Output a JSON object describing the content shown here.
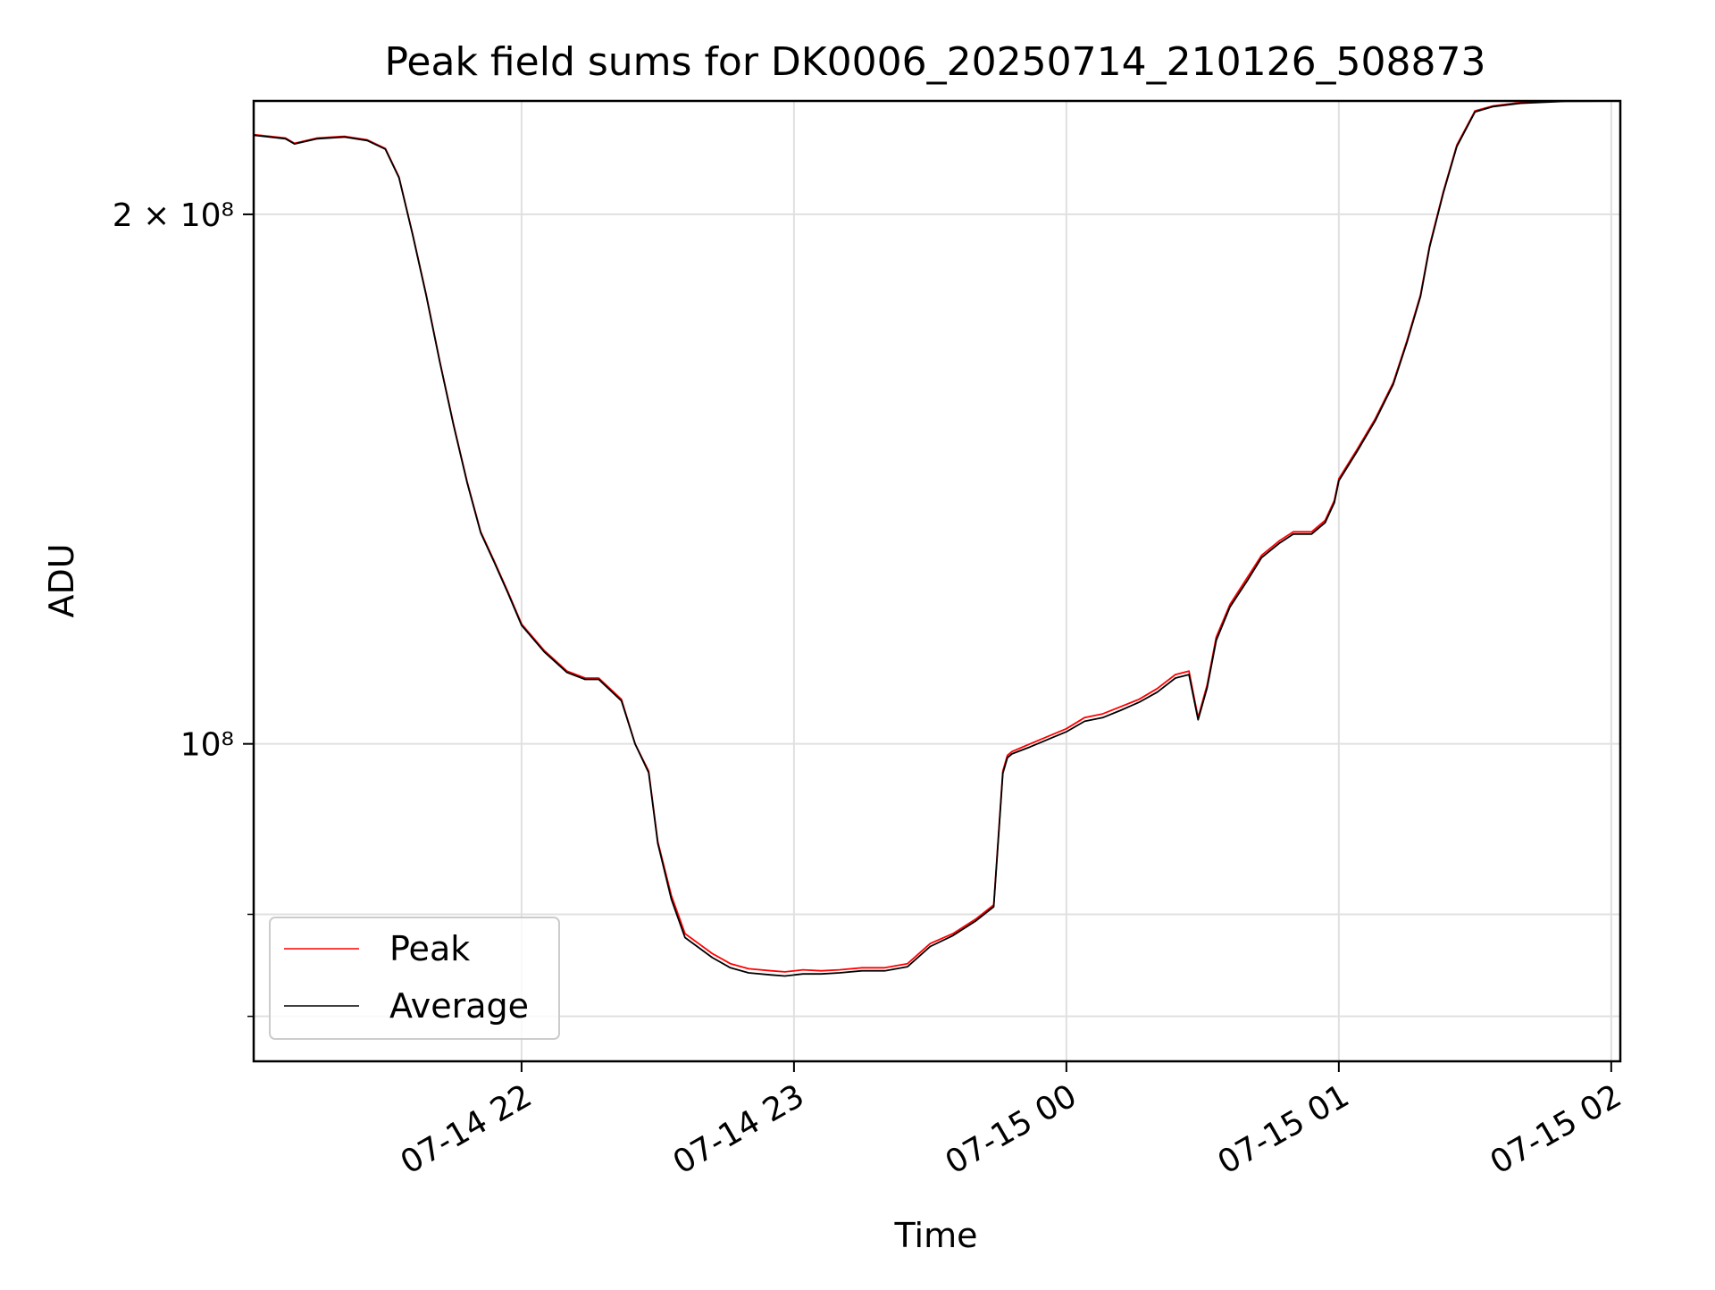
{
  "chart_data": {
    "type": "line",
    "title": "Peak field sums for DK0006_20250714_210126_508873",
    "xlabel": "Time",
    "ylabel": "ADU",
    "yscale": "log",
    "grid": true,
    "legend_position": "lower-left",
    "x_ticks": [
      "07-14 22",
      "07-14 23",
      "07-15 00",
      "07-15 01",
      "07-15 02"
    ],
    "y_ticks": [
      {
        "value": 200000000,
        "label": "2 × 10⁸"
      },
      {
        "value": 100000000,
        "label": "10⁸"
      }
    ],
    "y_minor_gridlines": [
      80000000,
      70000000
    ],
    "xlim": [
      "2025-07-14 21:01",
      "2025-07-15 02:02"
    ],
    "ylim": [
      66000000,
      232000000
    ],
    "series": [
      {
        "name": "Peak",
        "color": "#ff0000",
        "x": [
          "2025-07-14 21:01",
          "2025-07-14 21:08",
          "2025-07-14 21:10",
          "2025-07-14 21:15",
          "2025-07-14 21:21",
          "2025-07-14 21:26",
          "2025-07-14 21:30",
          "2025-07-14 21:33",
          "2025-07-14 21:36",
          "2025-07-14 21:39",
          "2025-07-14 21:42",
          "2025-07-14 21:45",
          "2025-07-14 21:48",
          "2025-07-14 21:51",
          "2025-07-14 21:54",
          "2025-07-14 21:57",
          "2025-07-14 22:00",
          "2025-07-14 22:05",
          "2025-07-14 22:10",
          "2025-07-14 22:14",
          "2025-07-14 22:17",
          "2025-07-14 22:22",
          "2025-07-14 22:25",
          "2025-07-14 22:28",
          "2025-07-14 22:30",
          "2025-07-14 22:33",
          "2025-07-14 22:36",
          "2025-07-14 22:39",
          "2025-07-14 22:42",
          "2025-07-14 22:46",
          "2025-07-14 22:50",
          "2025-07-14 22:55",
          "2025-07-14 22:58",
          "2025-07-14 23:02",
          "2025-07-14 23:06",
          "2025-07-14 23:10",
          "2025-07-14 23:15",
          "2025-07-14 23:20",
          "2025-07-14 23:25",
          "2025-07-14 23:30",
          "2025-07-14 23:35",
          "2025-07-14 23:40",
          "2025-07-14 23:44",
          "2025-07-14 23:46",
          "2025-07-14 23:47",
          "2025-07-14 23:48",
          "2025-07-14 23:52",
          "2025-07-14 23:56",
          "2025-07-15 00:00",
          "2025-07-15 00:04",
          "2025-07-15 00:08",
          "2025-07-15 00:12",
          "2025-07-15 00:16",
          "2025-07-15 00:20",
          "2025-07-15 00:24",
          "2025-07-15 00:27",
          "2025-07-15 00:29",
          "2025-07-15 00:31",
          "2025-07-15 00:33",
          "2025-07-15 00:36",
          "2025-07-15 00:40",
          "2025-07-15 00:43",
          "2025-07-15 00:47",
          "2025-07-15 00:50",
          "2025-07-15 00:54",
          "2025-07-15 00:57",
          "2025-07-15 00:59",
          "2025-07-15 01:00",
          "2025-07-15 01:04",
          "2025-07-15 01:08",
          "2025-07-15 01:12",
          "2025-07-15 01:15",
          "2025-07-15 01:18",
          "2025-07-15 01:20",
          "2025-07-15 01:23",
          "2025-07-15 01:26",
          "2025-07-15 01:30",
          "2025-07-15 01:34",
          "2025-07-15 01:40",
          "2025-07-15 01:50",
          "2025-07-15 02:02"
        ],
        "y": [
          222000000,
          221000000,
          219500000,
          221000000,
          221500000,
          220500000,
          218000000,
          210000000,
          195000000,
          180000000,
          165000000,
          152000000,
          141000000,
          132000000,
          127000000,
          122000000,
          117000000,
          113000000,
          110000000,
          109000000,
          109000000,
          106000000,
          100000000,
          96500000,
          88000000,
          82000000,
          78000000,
          77000000,
          76000000,
          75000000,
          74500000,
          74300000,
          74200000,
          74400000,
          74300000,
          74400000,
          74600000,
          74600000,
          75000000,
          77000000,
          78000000,
          79500000,
          81000000,
          96500000,
          98500000,
          99000000,
          100000000,
          101000000,
          102000000,
          103500000,
          104000000,
          105000000,
          106000000,
          107500000,
          109500000,
          110000000,
          103500000,
          108000000,
          115000000,
          120000000,
          124500000,
          128000000,
          130500000,
          132000000,
          132000000,
          134000000,
          137500000,
          141500000,
          147000000,
          153000000,
          160500000,
          169500000,
          180000000,
          192000000,
          206000000,
          219000000,
          229000000,
          230500000,
          231500000,
          232000000,
          232000000
        ]
      },
      {
        "name": "Average",
        "color": "#000000",
        "x": [
          "2025-07-14 21:01",
          "2025-07-14 21:08",
          "2025-07-14 21:10",
          "2025-07-14 21:15",
          "2025-07-14 21:21",
          "2025-07-14 21:26",
          "2025-07-14 21:30",
          "2025-07-14 21:33",
          "2025-07-14 21:36",
          "2025-07-14 21:39",
          "2025-07-14 21:42",
          "2025-07-14 21:45",
          "2025-07-14 21:48",
          "2025-07-14 21:51",
          "2025-07-14 21:54",
          "2025-07-14 21:57",
          "2025-07-14 22:00",
          "2025-07-14 22:05",
          "2025-07-14 22:10",
          "2025-07-14 22:14",
          "2025-07-14 22:17",
          "2025-07-14 22:22",
          "2025-07-14 22:25",
          "2025-07-14 22:28",
          "2025-07-14 22:30",
          "2025-07-14 22:33",
          "2025-07-14 22:36",
          "2025-07-14 22:39",
          "2025-07-14 22:42",
          "2025-07-14 22:46",
          "2025-07-14 22:50",
          "2025-07-14 22:55",
          "2025-07-14 22:58",
          "2025-07-14 23:02",
          "2025-07-14 23:06",
          "2025-07-14 23:10",
          "2025-07-14 23:15",
          "2025-07-14 23:20",
          "2025-07-14 23:25",
          "2025-07-14 23:30",
          "2025-07-14 23:35",
          "2025-07-14 23:40",
          "2025-07-14 23:44",
          "2025-07-14 23:46",
          "2025-07-14 23:47",
          "2025-07-14 23:48",
          "2025-07-14 23:52",
          "2025-07-14 23:56",
          "2025-07-15 00:00",
          "2025-07-15 00:04",
          "2025-07-15 00:08",
          "2025-07-15 00:12",
          "2025-07-15 00:16",
          "2025-07-15 00:20",
          "2025-07-15 00:24",
          "2025-07-15 00:27",
          "2025-07-15 00:29",
          "2025-07-15 00:31",
          "2025-07-15 00:33",
          "2025-07-15 00:36",
          "2025-07-15 00:40",
          "2025-07-15 00:43",
          "2025-07-15 00:47",
          "2025-07-15 00:50",
          "2025-07-15 00:54",
          "2025-07-15 00:57",
          "2025-07-15 00:59",
          "2025-07-15 01:00",
          "2025-07-15 01:04",
          "2025-07-15 01:08",
          "2025-07-15 01:12",
          "2025-07-15 01:15",
          "2025-07-15 01:18",
          "2025-07-15 01:20",
          "2025-07-15 01:23",
          "2025-07-15 01:26",
          "2025-07-15 01:30",
          "2025-07-15 01:34",
          "2025-07-15 01:40",
          "2025-07-15 01:50",
          "2025-07-15 02:02"
        ],
        "y": [
          221800000,
          220800000,
          219300000,
          220800000,
          221300000,
          220300000,
          217800000,
          209800000,
          194800000,
          179800000,
          164800000,
          151800000,
          140800000,
          131800000,
          126800000,
          121800000,
          116800000,
          112800000,
          109800000,
          108800000,
          108800000,
          105800000,
          100000000,
          96300000,
          87800000,
          81600000,
          77600000,
          76600000,
          75600000,
          74600000,
          74100000,
          73900000,
          73800000,
          74000000,
          74000000,
          74100000,
          74300000,
          74300000,
          74700000,
          76700000,
          77800000,
          79300000,
          80800000,
          96200000,
          98200000,
          98700000,
          99600000,
          100600000,
          101600000,
          103000000,
          103500000,
          104500000,
          105600000,
          107000000,
          109000000,
          109500000,
          103200000,
          107600000,
          114500000,
          119600000,
          124000000,
          127600000,
          130100000,
          131600000,
          131600000,
          133600000,
          137100000,
          141100000,
          146600000,
          152600000,
          160100000,
          169100000,
          179600000,
          191600000,
          205600000,
          218600000,
          228700000,
          230300000,
          231300000,
          231900000,
          232000000
        ]
      }
    ]
  }
}
